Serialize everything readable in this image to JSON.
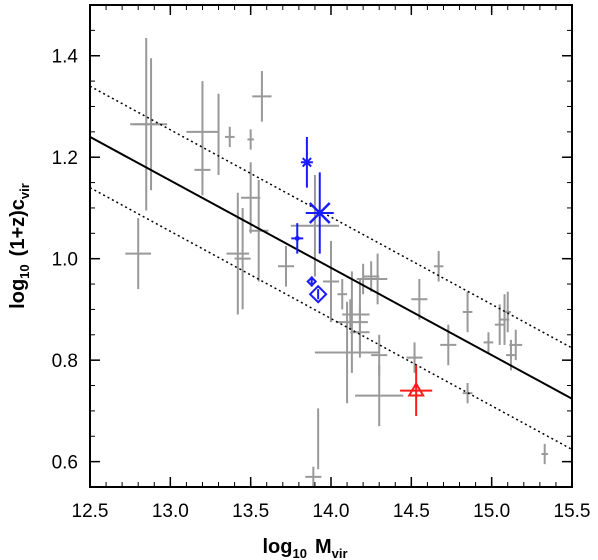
{
  "chart_data": {
    "type": "scatter",
    "title": "",
    "xlabel": {
      "base": "log",
      "base_sub": "10",
      "main": "M",
      "main_sub": "vir"
    },
    "ylabel": {
      "base": "log",
      "base_sub": "10",
      "main": "(1+z)c",
      "main_sub": "vir"
    },
    "xlim": [
      12.5,
      15.5
    ],
    "ylim": [
      0.55,
      1.5
    ],
    "x_ticks": [
      12.5,
      13.0,
      13.5,
      14.0,
      14.5,
      15.0,
      15.5
    ],
    "x_tick_labels": [
      "12.5",
      "13.0",
      "13.5",
      "14.0",
      "14.5",
      "15.0",
      "15.5"
    ],
    "y_ticks": [
      0.6,
      0.8,
      1.0,
      1.2,
      1.4
    ],
    "y_tick_labels": [
      "0.6",
      "0.8",
      "1.0",
      "1.2",
      "1.4"
    ],
    "grid": false,
    "fit_line": {
      "x": [
        12.5,
        15.5
      ],
      "y": [
        1.24,
        0.724
      ]
    },
    "scatter_band_offset": 0.1,
    "colors": {
      "gray": "#999999",
      "blue": "#1a1aff",
      "red": "#ff1a1a",
      "line": "#000000"
    },
    "series": [
      {
        "color": "gray",
        "marker": "cross",
        "points": [
          {
            "x": 12.8,
            "y": 1.01,
            "xerr": 0.08,
            "yerr": 0.07
          },
          {
            "x": 12.85,
            "y": 1.265,
            "xerr": 0.1,
            "yerr": 0.17
          },
          {
            "x": 12.88,
            "y": 1.265,
            "xerr": 0.1,
            "yerr": 0.13
          },
          {
            "x": 13.2,
            "y": 1.25,
            "xerr": 0.1,
            "yerr": 0.1
          },
          {
            "x": 13.2,
            "y": 1.175,
            "xerr": 0.05,
            "yerr": 0.05
          },
          {
            "x": 13.3,
            "y": 1.245,
            "xerr": 0.0,
            "yerr": 0.08
          },
          {
            "x": 13.37,
            "y": 1.24,
            "xerr": 0.03,
            "yerr": 0.02
          },
          {
            "x": 13.5,
            "y": 1.235,
            "xerr": 0.02,
            "yerr": 0.02
          },
          {
            "x": 13.57,
            "y": 1.32,
            "xerr": 0.06,
            "yerr": 0.05
          },
          {
            "x": 13.5,
            "y": 1.12,
            "xerr": 0.06,
            "yerr": 0.07
          },
          {
            "x": 13.55,
            "y": 1.055,
            "xerr": 0.06,
            "yerr": 0.1
          },
          {
            "x": 13.42,
            "y": 1.01,
            "xerr": 0.07,
            "yerr": 0.12
          },
          {
            "x": 13.45,
            "y": 1.0,
            "xerr": 0.05,
            "yerr": 0.1
          },
          {
            "x": 13.72,
            "y": 0.985,
            "xerr": 0.05,
            "yerr": 0.04
          },
          {
            "x": 13.9,
            "y": 1.065,
            "xerr": 0.15,
            "yerr": 0.1
          },
          {
            "x": 14.0,
            "y": 0.955,
            "xerr": 0.05,
            "yerr": 0.08
          },
          {
            "x": 14.07,
            "y": 0.93,
            "xerr": 0.03,
            "yerr": 0.03
          },
          {
            "x": 14.12,
            "y": 0.89,
            "xerr": 0.05,
            "yerr": 0.03
          },
          {
            "x": 14.18,
            "y": 0.89,
            "xerr": 0.06,
            "yerr": 0.07
          },
          {
            "x": 14.2,
            "y": 0.96,
            "xerr": 0.04,
            "yerr": 0.03
          },
          {
            "x": 14.25,
            "y": 0.965,
            "xerr": 0.05,
            "yerr": 0.03
          },
          {
            "x": 14.29,
            "y": 0.96,
            "xerr": 0.06,
            "yerr": 0.05
          },
          {
            "x": 14.13,
            "y": 0.875,
            "xerr": 0.1,
            "yerr": 0.1
          },
          {
            "x": 14.18,
            "y": 0.855,
            "xerr": 0.06,
            "yerr": 0.05
          },
          {
            "x": 14.1,
            "y": 0.815,
            "xerr": 0.2,
            "yerr": 0.1
          },
          {
            "x": 14.3,
            "y": 0.81,
            "xerr": 0.05,
            "yerr": 0.04
          },
          {
            "x": 14.3,
            "y": 0.73,
            "xerr": 0.15,
            "yerr": 0.06
          },
          {
            "x": 14.52,
            "y": 0.805,
            "xerr": 0.05,
            "yerr": 0.03
          },
          {
            "x": 14.55,
            "y": 0.92,
            "xerr": 0.05,
            "yerr": 0.04
          },
          {
            "x": 14.67,
            "y": 0.985,
            "xerr": 0.03,
            "yerr": 0.03
          },
          {
            "x": 14.73,
            "y": 0.83,
            "xerr": 0.05,
            "yerr": 0.04
          },
          {
            "x": 14.85,
            "y": 0.895,
            "xerr": 0.03,
            "yerr": 0.04
          },
          {
            "x": 14.85,
            "y": 0.735,
            "xerr": 0.03,
            "yerr": 0.02
          },
          {
            "x": 14.98,
            "y": 0.835,
            "xerr": 0.03,
            "yerr": 0.02
          },
          {
            "x": 15.05,
            "y": 0.87,
            "xerr": 0.03,
            "yerr": 0.04
          },
          {
            "x": 15.08,
            "y": 0.88,
            "xerr": 0.03,
            "yerr": 0.05
          },
          {
            "x": 15.1,
            "y": 0.895,
            "xerr": 0.02,
            "yerr": 0.04
          },
          {
            "x": 15.12,
            "y": 0.81,
            "xerr": 0.03,
            "yerr": 0.03
          },
          {
            "x": 15.15,
            "y": 0.83,
            "xerr": 0.04,
            "yerr": 0.03
          },
          {
            "x": 15.33,
            "y": 0.615,
            "xerr": 0.02,
            "yerr": 0.02
          },
          {
            "x": 13.92,
            "y": 0.645,
            "xerr": 0.0,
            "yerr": 0.06
          },
          {
            "x": 13.89,
            "y": 0.57,
            "xerr": 0.05,
            "yerr": 0.02
          }
        ]
      },
      {
        "color": "blue",
        "marker": "mixed",
        "points": [
          {
            "x": 13.85,
            "y": 1.19,
            "xerr": 0.0,
            "yerr": 0.05,
            "symbol": "asterisk"
          },
          {
            "x": 13.93,
            "y": 1.09,
            "xerr": 0.0,
            "yerr": 0.08,
            "symbol": "x-large"
          },
          {
            "x": 13.79,
            "y": 1.04,
            "xerr": 0.0,
            "yerr": 0.03,
            "symbol": "plus-dot"
          },
          {
            "x": 13.88,
            "y": 0.955,
            "xerr": 0.0,
            "yerr": 0.01,
            "symbol": "diamond-small"
          },
          {
            "x": 13.92,
            "y": 0.93,
            "xerr": 0.0,
            "yerr": 0.01,
            "symbol": "diamond"
          }
        ]
      },
      {
        "color": "red",
        "marker": "triangle",
        "points": [
          {
            "x": 14.53,
            "y": 0.74,
            "xerr": 0.1,
            "yerr": 0.05,
            "symbol": "triangle"
          }
        ]
      }
    ]
  }
}
